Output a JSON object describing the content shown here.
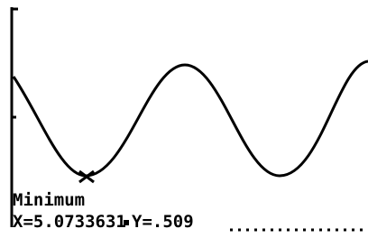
{
  "screen": {
    "label": "Minimum",
    "x_readout": "X=5.0733631",
    "y_readout": "Y=.509"
  }
}
